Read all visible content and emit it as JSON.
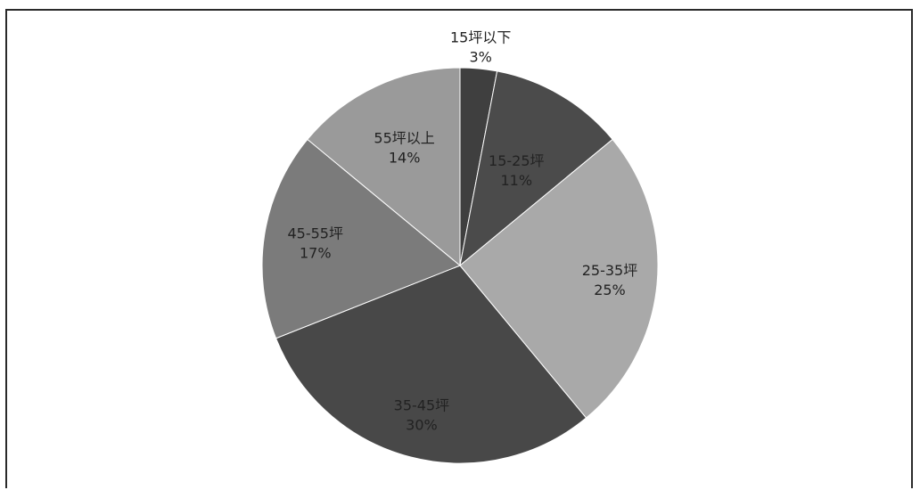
{
  "chart_data": {
    "type": "pie",
    "title": "",
    "slices": [
      {
        "label": "15坪以下",
        "value": 3,
        "value_label": "3%",
        "color": "#3f3f3f"
      },
      {
        "label": "15-25坪",
        "value": 11,
        "value_label": "11%",
        "color": "#4b4b4b"
      },
      {
        "label": "25-35坪",
        "value": 25,
        "value_label": "25%",
        "color": "#a9a9a9"
      },
      {
        "label": "35-45坪",
        "value": 30,
        "value_label": "30%",
        "color": "#484848"
      },
      {
        "label": "45-55坪",
        "value": 17,
        "value_label": "17%",
        "color": "#7b7b7b"
      },
      {
        "label": "55坪以上",
        "value": 14,
        "value_label": "14%",
        "color": "#9a9a9a"
      }
    ]
  }
}
